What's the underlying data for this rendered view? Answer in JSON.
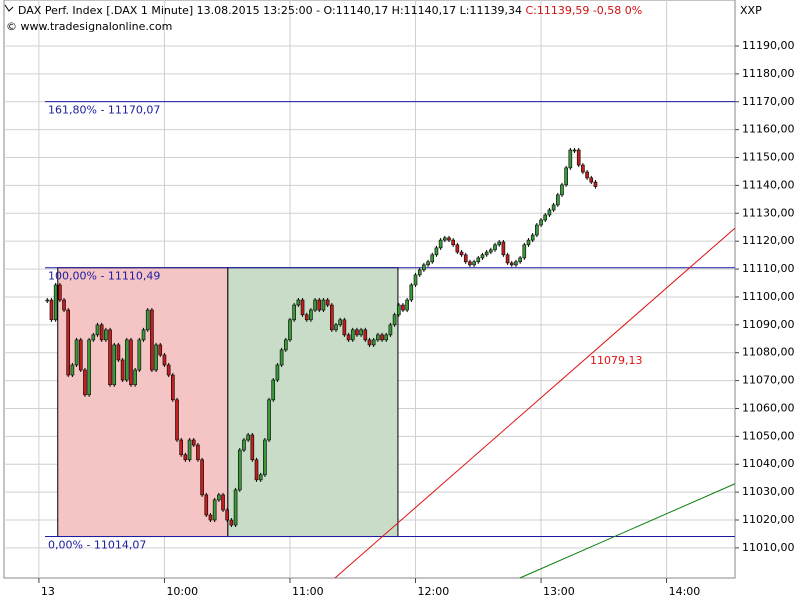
{
  "chart_data": {
    "type": "candlestick",
    "title": "DAX Perf. Index [.DAX  1 Minute] 13.08.2015 13:25:00 - O:11140,17 H:11140,17 L:11139,34",
    "title_close": "C:11139,59 -0,58 0%",
    "subtitle": "© www.tradesignalonline.com",
    "corner_label": "XXP",
    "x": [
      4,
      6,
      8,
      10,
      12,
      14,
      16,
      18,
      20,
      22,
      24,
      26,
      28,
      30,
      32,
      34,
      36,
      38,
      40,
      42,
      44,
      46,
      48,
      50,
      52,
      54,
      56,
      58,
      60,
      62,
      64,
      66,
      68,
      70,
      72,
      74,
      76,
      78,
      80,
      82,
      84,
      86,
      88,
      90,
      92,
      94,
      96,
      98,
      100,
      102,
      104,
      106,
      108,
      110,
      112,
      114,
      116,
      118,
      120,
      122,
      124,
      126,
      128,
      130,
      132,
      134,
      136,
      138,
      140,
      142,
      144,
      146,
      148,
      150,
      152,
      154,
      156,
      158,
      160,
      162,
      164,
      166,
      168,
      170,
      172,
      174,
      176,
      178,
      180,
      182,
      184,
      186,
      188,
      190,
      192,
      194,
      196,
      198,
      200,
      202,
      204,
      206,
      208,
      210,
      212,
      214,
      216,
      218,
      220,
      222,
      224,
      226,
      228,
      230,
      232,
      234,
      236,
      238,
      240,
      242,
      244,
      246,
      248,
      250,
      252,
      254,
      256,
      258,
      260,
      262,
      264,
      266
    ],
    "values": [
      11098.9,
      11091.8,
      11104.3,
      11098.9,
      11095.3,
      11072.0,
      11075.6,
      11084.6,
      11073.8,
      11064.9,
      11084.6,
      11086.4,
      11090.0,
      11084.6,
      11088.2,
      11068.5,
      11082.8,
      11077.4,
      11070.2,
      11084.6,
      11068.5,
      11073.8,
      11084.6,
      11088.2,
      11095.3,
      11073.8,
      11082.8,
      11079.2,
      11075.6,
      11072.0,
      11063.1,
      11048.7,
      11043.4,
      11041.6,
      11048.7,
      11046.9,
      11041.6,
      11029.0,
      11021.8,
      11020.0,
      11027.2,
      11029.0,
      11023.6,
      11020.0,
      11018.2,
      11030.8,
      11045.1,
      11048.7,
      11050.5,
      11041.6,
      11034.4,
      11036.2,
      11048.7,
      11063.1,
      11070.2,
      11075.6,
      11081.0,
      11084.6,
      11091.8,
      11097.1,
      11098.9,
      11093.6,
      11091.8,
      11095.3,
      11098.9,
      11095.3,
      11098.9,
      11097.1,
      11088.2,
      11090.0,
      11091.8,
      11086.4,
      11084.6,
      11088.2,
      11086.4,
      11088.2,
      11084.6,
      11082.8,
      11084.6,
      11086.4,
      11084.6,
      11086.4,
      11090.0,
      11093.6,
      11097.1,
      11095.3,
      11098.9,
      11104.3,
      11107.9,
      11109.7,
      11111.5,
      11112.6,
      11115.1,
      11117.6,
      11120.4,
      11121.2,
      11120.4,
      11118.7,
      11116.1,
      11115.1,
      11112.6,
      11111.5,
      11112.6,
      11114.0,
      11115.1,
      11116.1,
      11116.9,
      11118.7,
      11119.7,
      11115.1,
      11112.2,
      11111.5,
      11112.6,
      11114.0,
      11118.7,
      11120.4,
      11122.2,
      11125.8,
      11127.6,
      11129.4,
      11131.2,
      11133.0,
      11136.6,
      11140.2,
      11146.3,
      11152.7,
      11152.7,
      11147.3,
      11144.8,
      11142.7,
      11141.2,
      11139.6
    ],
    "up_color": "#3a9a3a",
    "down_color": "#c41e1e",
    "xlim": [
      -18.6,
      332.7
    ],
    "ylim": [
      10999.2,
      11206.5
    ],
    "xticks": [
      {
        "value": 0,
        "label": "13"
      },
      {
        "value": 60,
        "label": "10:00"
      },
      {
        "value": 120,
        "label": "11:00"
      },
      {
        "value": 180,
        "label": "12:00"
      },
      {
        "value": 240,
        "label": "13:00"
      },
      {
        "value": 300,
        "label": "14:00"
      }
    ],
    "yticks": [
      {
        "value": 11010,
        "label": "11010,00"
      },
      {
        "value": 11020,
        "label": "11020,00"
      },
      {
        "value": 11030,
        "label": "11030,00"
      },
      {
        "value": 11040,
        "label": "11040,00"
      },
      {
        "value": 11050,
        "label": "11050,00"
      },
      {
        "value": 11060,
        "label": "11060,00"
      },
      {
        "value": 11070,
        "label": "11070,00"
      },
      {
        "value": 11080,
        "label": "11080,00"
      },
      {
        "value": 11090,
        "label": "11090,00"
      },
      {
        "value": 11100,
        "label": "11100,00"
      },
      {
        "value": 11110,
        "label": "11110,00"
      },
      {
        "value": 11120,
        "label": "11120,00"
      },
      {
        "value": 11130,
        "label": "11130,00"
      },
      {
        "value": 11140,
        "label": "11140,00"
      },
      {
        "value": 11150,
        "label": "11150,00"
      },
      {
        "value": 11160,
        "label": "11160,00"
      },
      {
        "value": 11170,
        "label": "11170,00"
      },
      {
        "value": 11180,
        "label": "11180,00"
      },
      {
        "value": 11190,
        "label": "11190,00"
      }
    ],
    "grid": true,
    "zones": [
      {
        "x": [
          9,
          90.3
        ],
        "y": [
          11014.07,
          11110.49
        ],
        "color": "#f5c4c4"
      },
      {
        "x": [
          90.3,
          171.6
        ],
        "y": [
          11014.07,
          11110.49
        ],
        "color": "#c8dcc8"
      }
    ],
    "levels": [
      {
        "value": 11170.07,
        "label": "161,80% - 11170,07",
        "color": "#1c1ca0"
      },
      {
        "value": 11110.49,
        "label": "100,00% - 11110,49",
        "color": "#1c1ca0"
      },
      {
        "value": 11014.07,
        "label": "0,00% - 11014,07",
        "color": "#1c1ca0"
      }
    ],
    "trendlines": [
      {
        "x": [
          141.5,
          332.7
        ],
        "y": [
          10999.2,
          11124.7
        ],
        "color": "#e01010",
        "label": "11079,13"
      },
      {
        "x": [
          229.9,
          332.7
        ],
        "y": [
          10999.2,
          11033.0
        ],
        "color": "#108010"
      }
    ]
  }
}
